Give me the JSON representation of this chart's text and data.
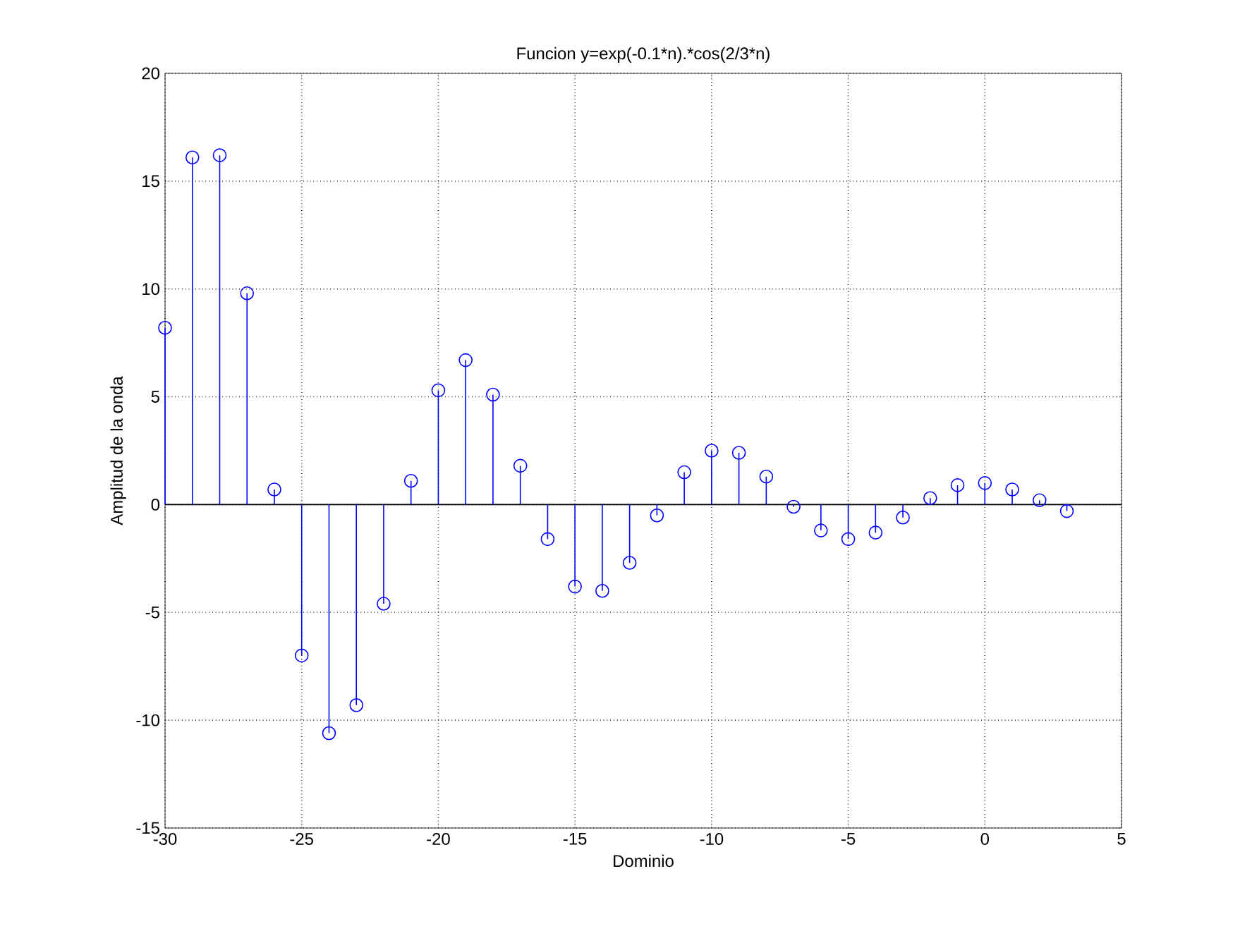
{
  "chart_data": {
    "type": "lollipop",
    "title": "Funcion y=exp(-0.1*n).*cos(2/3*n)",
    "xlabel": "Dominio",
    "ylabel": "Amplitud de la onda",
    "x": [
      -30,
      -29,
      -28,
      -27,
      -26,
      -25,
      -24,
      -23,
      -22,
      -21,
      -20,
      -19,
      -18,
      -17,
      -16,
      -15,
      -14,
      -13,
      -12,
      -11,
      -10,
      -9,
      -8,
      -7,
      -6,
      -5,
      -4,
      -3,
      -2,
      -1,
      0,
      1,
      2,
      3
    ],
    "values": [
      8.2,
      16.1,
      16.2,
      9.8,
      0.7,
      -7.0,
      -10.6,
      -9.3,
      -4.6,
      1.1,
      5.3,
      6.7,
      5.1,
      1.8,
      -1.6,
      -3.8,
      -4.0,
      -2.7,
      -0.5,
      1.5,
      2.5,
      2.4,
      1.3,
      -0.1,
      -1.2,
      -1.6,
      -1.3,
      -0.6,
      0.3,
      0.9,
      1.0,
      0.7,
      0.2,
      -0.3
    ],
    "color": "#0000ff",
    "marker": "circle",
    "grid": true,
    "xlim": [
      -30,
      5
    ],
    "ylim": [
      -15,
      20
    ],
    "xticks": [
      -30,
      -25,
      -20,
      -15,
      -10,
      -5,
      0,
      5
    ],
    "yticks": [
      -15,
      -10,
      -5,
      0,
      5,
      10,
      15,
      20
    ]
  }
}
